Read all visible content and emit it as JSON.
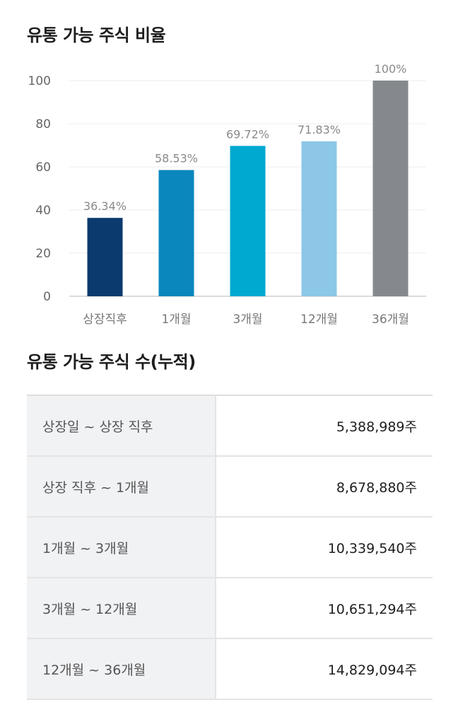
{
  "titles": {
    "ratio": "유통 가능 주식 비율",
    "count": "유통 가능 주식 수(누적)"
  },
  "chart_data": {
    "type": "bar",
    "title": "유통 가능 주식 비율",
    "categories": [
      "상장직후",
      "1개월",
      "3개월",
      "12개월",
      "36개월"
    ],
    "values": [
      36.34,
      58.53,
      69.72,
      71.83,
      100
    ],
    "value_labels": [
      "36.34%",
      "58.53%",
      "69.72%",
      "71.83%",
      "100%"
    ],
    "bar_colors": [
      "#0b3a6e",
      "#0a87bd",
      "#00a9d0",
      "#8cc7e8",
      "#85888c"
    ],
    "y_ticks": [
      "0",
      "20",
      "40",
      "60",
      "80",
      "100"
    ],
    "ylim": [
      0,
      100
    ],
    "grid": true
  },
  "table": {
    "rows": [
      {
        "period": "상장일 ~ 상장 직후",
        "amount": "5,388,989주"
      },
      {
        "period": "상장 직후 ~ 1개월",
        "amount": "8,678,880주"
      },
      {
        "period": "1개월 ~ 3개월",
        "amount": "10,339,540주"
      },
      {
        "period": "3개월 ~ 12개월",
        "amount": "10,651,294주"
      },
      {
        "period": "12개월 ~ 36개월",
        "amount": "14,829,094주"
      }
    ]
  }
}
